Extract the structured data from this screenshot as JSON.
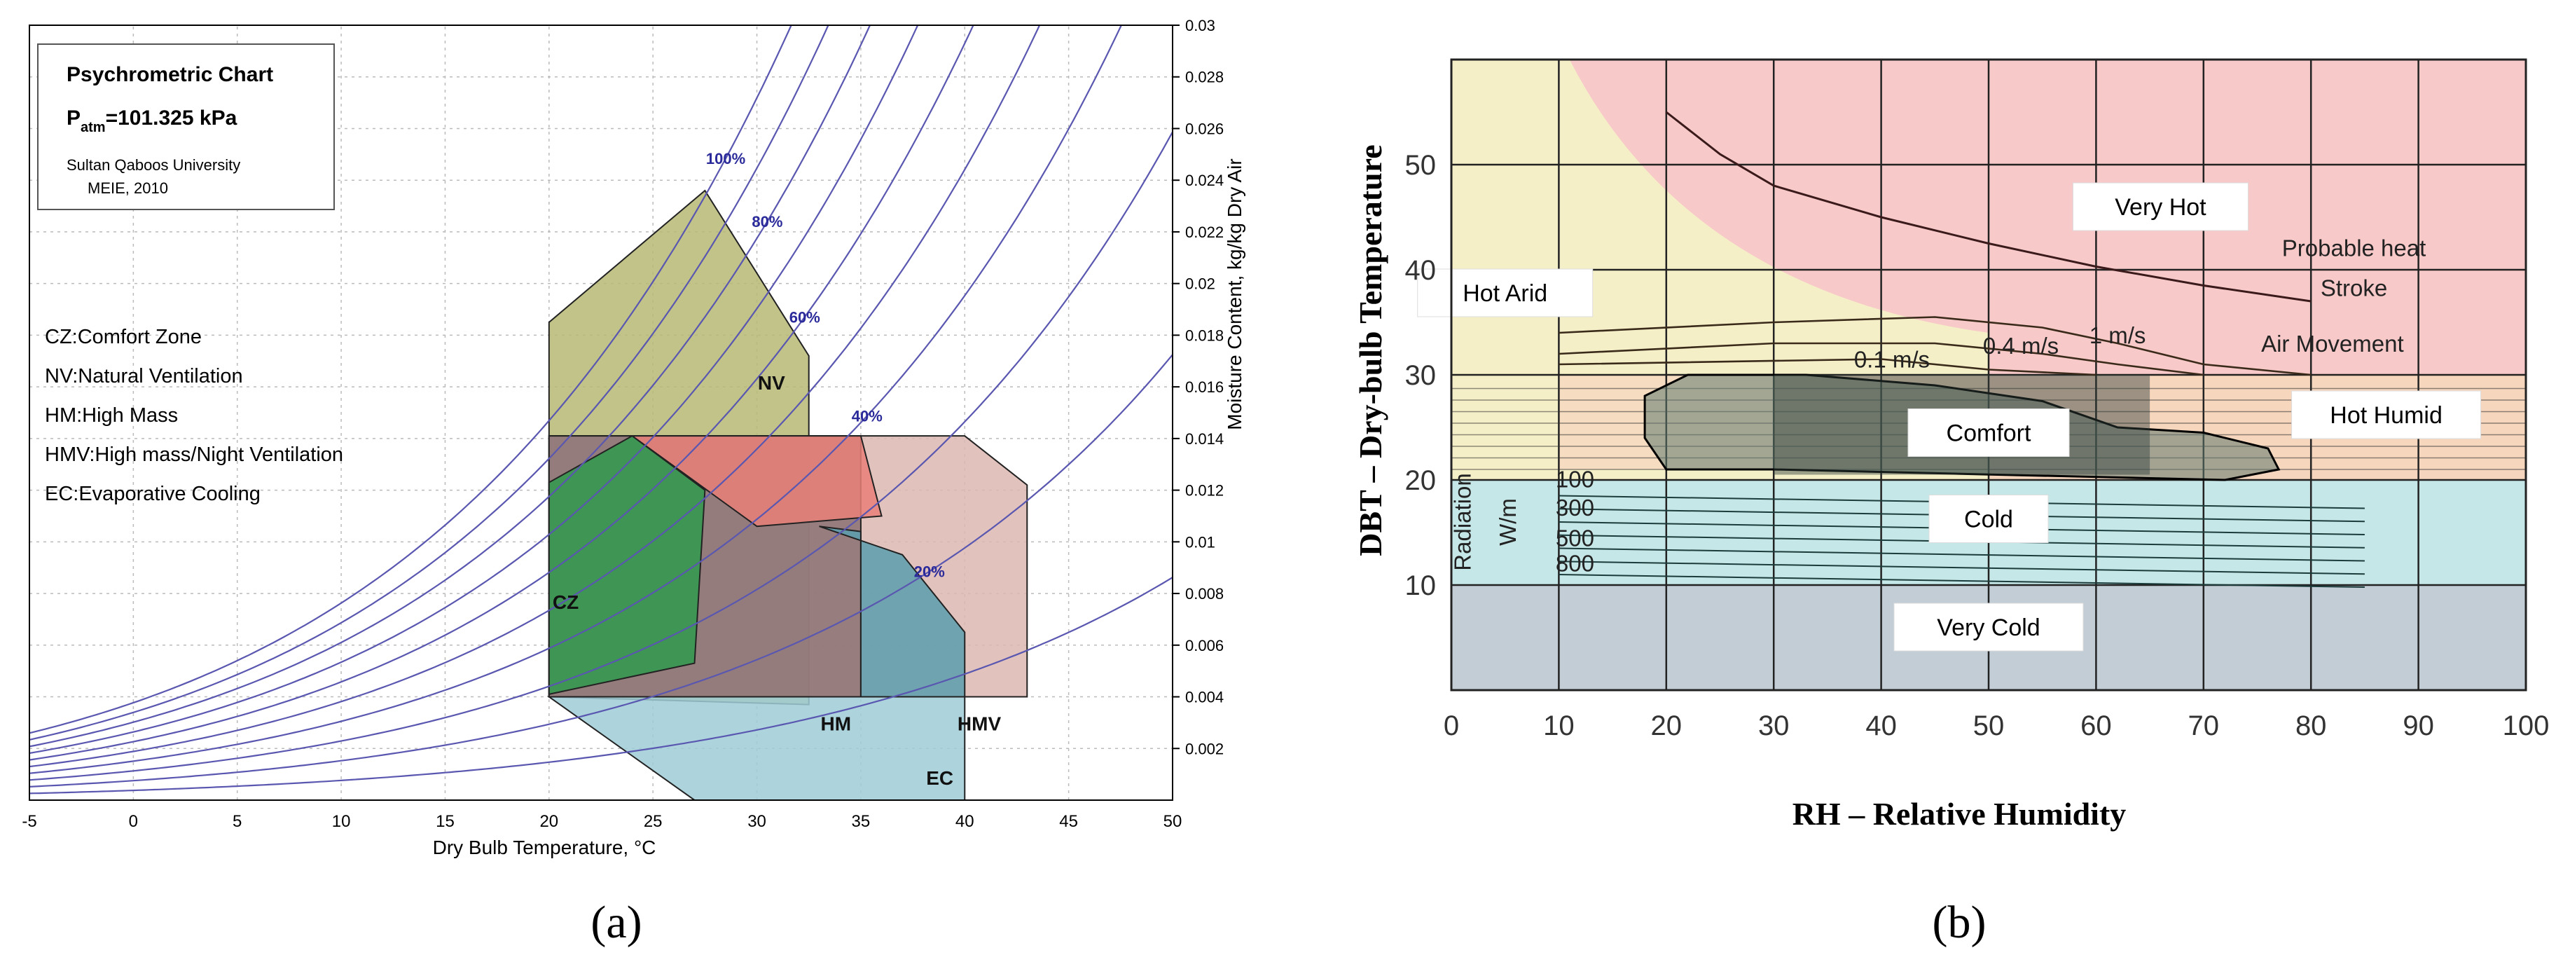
{
  "chart_data": [
    {
      "id": "a",
      "type": "psychrometric-chart",
      "panel_label": "(a)",
      "title_box": {
        "title": "Psychrometric Chart",
        "patm_symbol": "P",
        "patm_sub": "atm",
        "patm_value": "=101.325 kPa",
        "institution": "Sultan Qaboos University",
        "dept": "MEIE, 2010"
      },
      "legend_lines": [
        "CZ:Comfort Zone",
        "NV:Natural Ventilation",
        "HM:High Mass",
        "HMV:High mass/Night Ventilation",
        "EC:Evaporative Cooling"
      ],
      "xlabel": "Dry Bulb Temperature,  °C",
      "ylabel": "Moisture Content, kg/kg Dry Air",
      "xlim": [
        -5,
        50
      ],
      "ylim": [
        0,
        0.03
      ],
      "x_ticks": [
        "-5",
        "0",
        "5",
        "10",
        "15",
        "20",
        "25",
        "30",
        "35",
        "40",
        "45",
        "50"
      ],
      "y_ticks": [
        "0.002",
        "0.004",
        "0.006",
        "0.008",
        "0.01",
        "0.012",
        "0.014",
        "0.016",
        "0.018",
        "0.02",
        "0.022",
        "0.024",
        "0.026",
        "0.028",
        "0.03"
      ],
      "rh_curves": [
        10,
        20,
        30,
        40,
        50,
        60,
        70,
        80,
        90,
        100
      ],
      "rh_labels": [
        {
          "text": "100%",
          "rh": 100,
          "t": 28.5
        },
        {
          "text": "80%",
          "rh": 80,
          "t": 30.5
        },
        {
          "text": "60%",
          "rh": 60,
          "t": 32.3
        },
        {
          "text": "40%",
          "rh": 40,
          "t": 35.3
        },
        {
          "text": "20%",
          "rh": 20,
          "t": 38.3
        }
      ],
      "zones": [
        {
          "label": "NV",
          "name": "Natural Ventilation",
          "color": "#b7b874",
          "points": [
            [
              20,
              0.004
            ],
            [
              20,
              0.0185
            ],
            [
              27.5,
              0.0236
            ],
            [
              32.5,
              0.0172
            ],
            [
              32.5,
              0.0037
            ]
          ]
        },
        {
          "label": "HMV",
          "name": "High mass/Night Ventilation",
          "color": "#dcb7b2",
          "points": [
            [
              20,
              0.0141
            ],
            [
              40,
              0.0141
            ],
            [
              43,
              0.0122
            ],
            [
              43,
              0.004
            ],
            [
              20,
              0.004
            ]
          ]
        },
        {
          "label": "HM",
          "name": "High Mass",
          "color": "#8a7173",
          "points": [
            [
              20,
              0.0141
            ],
            [
              35,
              0.0141
            ],
            [
              35,
              0.004
            ],
            [
              20,
              0.004
            ]
          ]
        },
        {
          "label": "",
          "name": "HM upper (red)",
          "color": "#e98079",
          "points": [
            [
              24,
              0.0141
            ],
            [
              35,
              0.0141
            ],
            [
              36,
              0.011
            ],
            [
              30,
              0.0106
            ]
          ]
        },
        {
          "label": "",
          "name": "HM (teal)",
          "color": "#5a9eae",
          "points": [
            [
              33,
              0.0106
            ],
            [
              37,
              0.0095
            ],
            [
              40,
              0.0065
            ],
            [
              40,
              0.004
            ],
            [
              35,
              0.004
            ],
            [
              35,
              0.0104
            ]
          ]
        },
        {
          "label": "EC",
          "name": "Evaporative Cooling",
          "color": "#9fcdd7",
          "points": [
            [
              20,
              0.004
            ],
            [
              27,
              0
            ],
            [
              40,
              0
            ],
            [
              40,
              0.004
            ]
          ]
        },
        {
          "label": "CZ",
          "name": "Comfort Zone",
          "color": "#2f9a4e",
          "points": [
            [
              20,
              0.0041
            ],
            [
              20,
              0.0123
            ],
            [
              24,
              0.0141
            ],
            [
              27.5,
              0.012
            ],
            [
              27,
              0.0053
            ],
            [
              20,
              0.0041
            ]
          ]
        }
      ],
      "zone_label_positions": [
        {
          "text": "NV",
          "t": 30.7,
          "w": 0.0159
        },
        {
          "text": "CZ",
          "t": 20.8,
          "w": 0.0074
        },
        {
          "text": "HM",
          "t": 33.8,
          "w": 0.0027
        },
        {
          "text": "HMV",
          "t": 40.7,
          "w": 0.0027
        },
        {
          "text": "EC",
          "t": 38.8,
          "w": 0.0006
        }
      ]
    },
    {
      "id": "b",
      "type": "bioclimatic-chart",
      "panel_label": "(b)",
      "xlabel": "RH  –  Relative  Humidity",
      "ylabel": "DBT  –  Dry-bulb  Temperature",
      "xlim": [
        0,
        100
      ],
      "ylim": [
        0,
        60
      ],
      "x_ticks": [
        "0",
        "10",
        "20",
        "30",
        "40",
        "50",
        "60",
        "70",
        "80",
        "90",
        "100"
      ],
      "y_ticks": [
        "10",
        "20",
        "30",
        "40",
        "50"
      ],
      "regions": [
        {
          "name": "Very Cold",
          "color": "#c2cdd6",
          "y_range": [
            0,
            10
          ]
        },
        {
          "name": "Cold",
          "color": "#c6e7e7",
          "y_range": [
            10,
            20
          ]
        },
        {
          "name": "Hot Humid",
          "color": "#f5d5bd",
          "y_range": [
            20,
            30
          ]
        },
        {
          "name": "Very Hot",
          "color": "#f8c9c9",
          "y_range": [
            30,
            60
          ]
        },
        {
          "name": "Hot Arid",
          "color": "#f5efc8",
          "y_range": [
            20,
            60
          ]
        }
      ],
      "region_labels": [
        {
          "text": "Very Hot",
          "rh": 66,
          "dbt": 46
        },
        {
          "text": "Hot Arid",
          "rh": 5,
          "dbt": 37.8
        },
        {
          "text": "Hot Humid",
          "rh": 87,
          "dbt": 26.2
        },
        {
          "text": "Comfort",
          "rh": 50,
          "dbt": 24.5
        },
        {
          "text": "Cold",
          "rh": 50,
          "dbt": 16.3
        },
        {
          "text": "Very Cold",
          "rh": 50,
          "dbt": 6
        }
      ],
      "annotations": [
        {
          "text": "Probable heat",
          "rh": 84,
          "dbt": 41.3
        },
        {
          "text": "Stroke",
          "rh": 84,
          "dbt": 37.5
        },
        {
          "text": "Air Movement",
          "rh": 82,
          "dbt": 32.2
        },
        {
          "text": "0.1 m/s",
          "rh": 41,
          "dbt": 30.7
        },
        {
          "text": "0.4 m/s",
          "rh": 53,
          "dbt": 32
        },
        {
          "text": "1 m/s",
          "rh": 62,
          "dbt": 33
        },
        {
          "text": "100",
          "rh": 11.5,
          "dbt": 19.3
        },
        {
          "text": "300",
          "rh": 11.5,
          "dbt": 16.6
        },
        {
          "text": "500",
          "rh": 11.5,
          "dbt": 13.7
        },
        {
          "text": "800",
          "rh": 11.5,
          "dbt": 11.3
        },
        {
          "text": "Radiation",
          "rh": 1.8,
          "dbt": 16
        },
        {
          "text": "W/m",
          "rh": 6,
          "dbt": 16
        }
      ],
      "heat_stroke_curve": [
        [
          20,
          55
        ],
        [
          25,
          51
        ],
        [
          30,
          48
        ],
        [
          40,
          45
        ],
        [
          50,
          42.5
        ],
        [
          60,
          40.3
        ],
        [
          70,
          38.5
        ],
        [
          80,
          37
        ]
      ],
      "air_movement_curves": [
        [
          [
            10,
            34
          ],
          [
            30,
            35
          ],
          [
            45,
            35.5
          ],
          [
            55,
            34.5
          ],
          [
            62,
            33
          ],
          [
            70,
            31
          ],
          [
            80,
            30
          ]
        ],
        [
          [
            10,
            32
          ],
          [
            30,
            33
          ],
          [
            45,
            33
          ],
          [
            55,
            32
          ],
          [
            62,
            31
          ],
          [
            70,
            30
          ]
        ],
        [
          [
            10,
            31
          ],
          [
            40,
            31.5
          ],
          [
            50,
            30.5
          ],
          [
            60,
            30
          ]
        ]
      ],
      "comfort_zone_outline": [
        [
          18,
          24
        ],
        [
          18,
          28
        ],
        [
          22,
          30
        ],
        [
          33,
          30
        ],
        [
          45,
          29
        ],
        [
          55,
          27.5
        ],
        [
          62,
          25
        ],
        [
          70,
          24.5
        ],
        [
          76,
          23
        ],
        [
          77,
          21
        ],
        [
          72,
          20
        ],
        [
          30,
          21
        ],
        [
          20,
          21
        ]
      ],
      "radiation_lines": [
        85,
        19,
        11
      ]
    }
  ]
}
